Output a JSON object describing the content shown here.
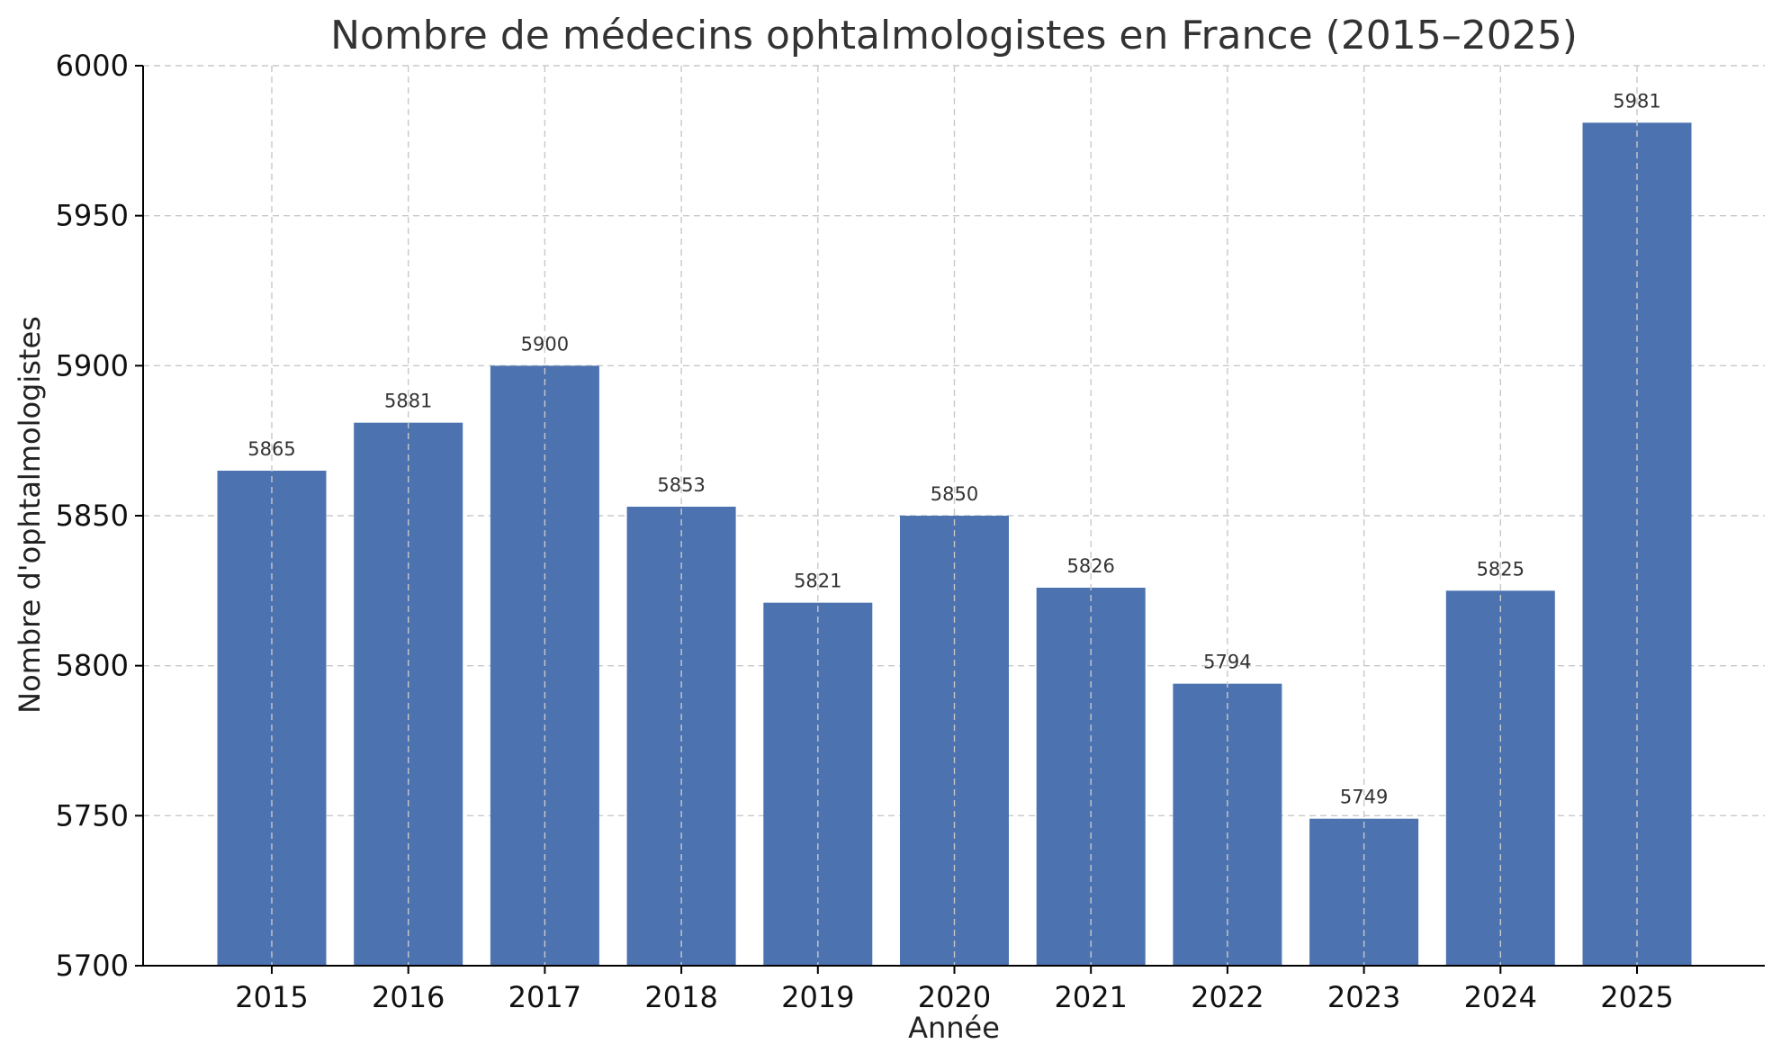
{
  "chart_data": {
    "type": "bar",
    "title": "Nombre de médecins ophtalmologistes en France (2015–2025)",
    "xlabel": "Année",
    "ylabel": "Nombre d'ophtalmologistes",
    "categories": [
      "2015",
      "2016",
      "2017",
      "2018",
      "2019",
      "2020",
      "2021",
      "2022",
      "2023",
      "2024",
      "2025"
    ],
    "values": [
      5865,
      5881,
      5900,
      5853,
      5821,
      5850,
      5826,
      5794,
      5749,
      5825,
      5981
    ],
    "ylim": [
      5700,
      6000
    ],
    "yticks": [
      5700,
      5750,
      5800,
      5850,
      5900,
      5950,
      6000
    ],
    "grid": true,
    "bar_color": "#4c72b0",
    "data_labels": true
  }
}
